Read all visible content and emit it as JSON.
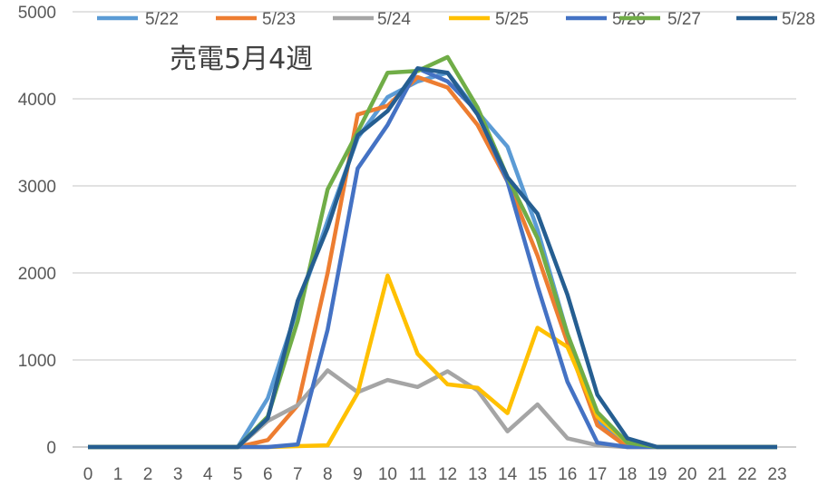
{
  "chart_data": {
    "type": "line",
    "title": "売電5月4週",
    "xlabel": "",
    "ylabel": "",
    "x": [
      0,
      1,
      2,
      3,
      4,
      5,
      6,
      7,
      8,
      9,
      10,
      11,
      12,
      13,
      14,
      15,
      16,
      17,
      18,
      19,
      20,
      21,
      22,
      23
    ],
    "ylim": [
      0,
      5000
    ],
    "yticks": [
      0,
      1000,
      2000,
      3000,
      4000,
      5000
    ],
    "grid": true,
    "legend_position": "top",
    "series": [
      {
        "name": "5/22",
        "color": "#5B9BD5",
        "values": [
          0,
          0,
          0,
          0,
          0,
          0,
          560,
          1600,
          2600,
          3550,
          4020,
          4200,
          4300,
          3850,
          3450,
          2500,
          1300,
          300,
          30,
          0,
          0,
          0,
          0,
          0
        ]
      },
      {
        "name": "5/23",
        "color": "#ED7D31",
        "values": [
          0,
          0,
          0,
          0,
          0,
          0,
          80,
          480,
          2000,
          3820,
          3920,
          4250,
          4130,
          3700,
          3050,
          2200,
          1200,
          250,
          0,
          0,
          0,
          0,
          0,
          0
        ]
      },
      {
        "name": "5/24",
        "color": "#A5A5A5",
        "values": [
          0,
          0,
          0,
          0,
          0,
          0,
          300,
          480,
          880,
          630,
          770,
          690,
          870,
          650,
          180,
          490,
          100,
          20,
          0,
          0,
          0,
          0,
          0,
          0
        ]
      },
      {
        "name": "5/25",
        "color": "#FFC000",
        "values": [
          0,
          0,
          0,
          0,
          0,
          0,
          0,
          10,
          20,
          620,
          1970,
          1070,
          720,
          680,
          390,
          1370,
          1150,
          350,
          50,
          0,
          0,
          0,
          0,
          0
        ]
      },
      {
        "name": "5/26",
        "color": "#4472C4",
        "values": [
          0,
          0,
          0,
          0,
          0,
          0,
          0,
          30,
          1350,
          3200,
          3700,
          4350,
          4200,
          3850,
          3050,
          1850,
          750,
          50,
          0,
          0,
          0,
          0,
          0,
          0
        ]
      },
      {
        "name": "5/27",
        "color": "#70AD47",
        "values": [
          0,
          0,
          0,
          0,
          0,
          0,
          350,
          1450,
          2960,
          3620,
          4300,
          4320,
          4480,
          3900,
          3100,
          2400,
          1300,
          400,
          50,
          0,
          0,
          0,
          0,
          0
        ]
      },
      {
        "name": "5/28",
        "color": "#255E91",
        "values": [
          0,
          0,
          0,
          0,
          0,
          0,
          330,
          1680,
          2520,
          3580,
          3860,
          4350,
          4300,
          3820,
          3100,
          2680,
          1750,
          600,
          100,
          0,
          0,
          0,
          0,
          0
        ]
      }
    ]
  }
}
